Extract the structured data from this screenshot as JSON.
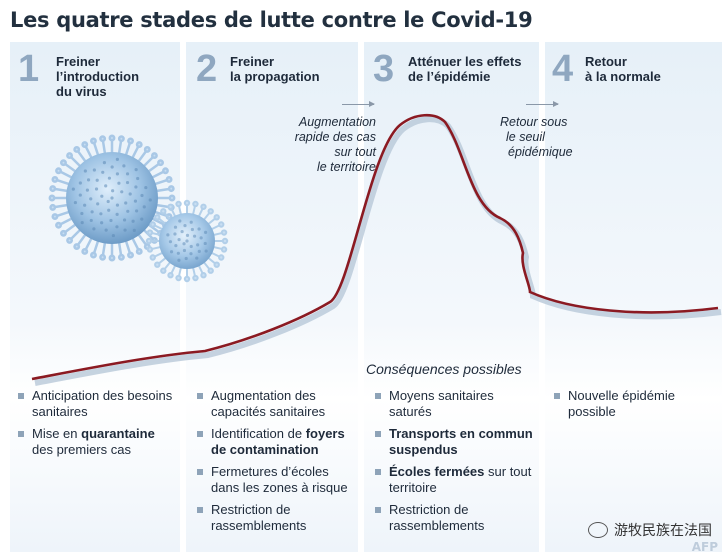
{
  "title": "Les quatre stades de lutte contre le Covid-19",
  "stages": [
    {
      "number": "1",
      "label_lines": [
        "Freiner",
        "l’introduction",
        "du virus"
      ]
    },
    {
      "number": "2",
      "label_lines": [
        "Freiner",
        "la propagation"
      ]
    },
    {
      "number": "3",
      "label_lines": [
        "Atténuer les effets",
        "de l’épidémie"
      ]
    },
    {
      "number": "4",
      "label_lines": [
        "Retour",
        "à la normale"
      ]
    }
  ],
  "annotations": {
    "rapid_increase_lines": [
      "Augmentation",
      "rapide des cas",
      "sur tout",
      "le territoire"
    ],
    "return_below_lines": [
      "Retour sous",
      "le seuil",
      "épidémique"
    ]
  },
  "consequences_title": "Conséquences possibles",
  "columns": [
    [
      [
        {
          "t": "Anticipation des besoins sanitaires",
          "b": false
        }
      ],
      [
        {
          "t": "Mise en ",
          "b": false
        },
        {
          "t": "quarantaine",
          "b": true
        },
        {
          "t": " des premiers cas",
          "b": false
        }
      ]
    ],
    [
      [
        {
          "t": "Augmentation des capacités sanitaires",
          "b": false
        }
      ],
      [
        {
          "t": "Identification de ",
          "b": false
        },
        {
          "t": "foyers de contamination",
          "b": true
        }
      ],
      [
        {
          "t": "Fermetures d’écoles dans les zones à risque",
          "b": false
        }
      ],
      [
        {
          "t": "Restriction de rassemblements",
          "b": false
        }
      ]
    ],
    [
      [
        {
          "t": "Moyens sanitaires saturés",
          "b": false
        }
      ],
      [
        {
          "t": "Transports en commun suspendus",
          "b": true
        }
      ],
      [
        {
          "t": "Écoles fermées",
          "b": true
        },
        {
          "t": " sur tout territoire",
          "b": false
        }
      ],
      [
        {
          "t": "Restriction de rassemblements",
          "b": false
        }
      ]
    ],
    [
      [
        {
          "t": "Nouvelle épidémie possible",
          "b": false
        }
      ]
    ]
  ],
  "watermark": "游牧民族在法国",
  "source_logo": "AFP",
  "colors": {
    "curve": "#8b1a22",
    "curve_shadow": "#b8c8d8",
    "stage_number": "#8fa7c0",
    "column_background": "#eaf2f9",
    "bullet": "#8ea3b8"
  }
}
